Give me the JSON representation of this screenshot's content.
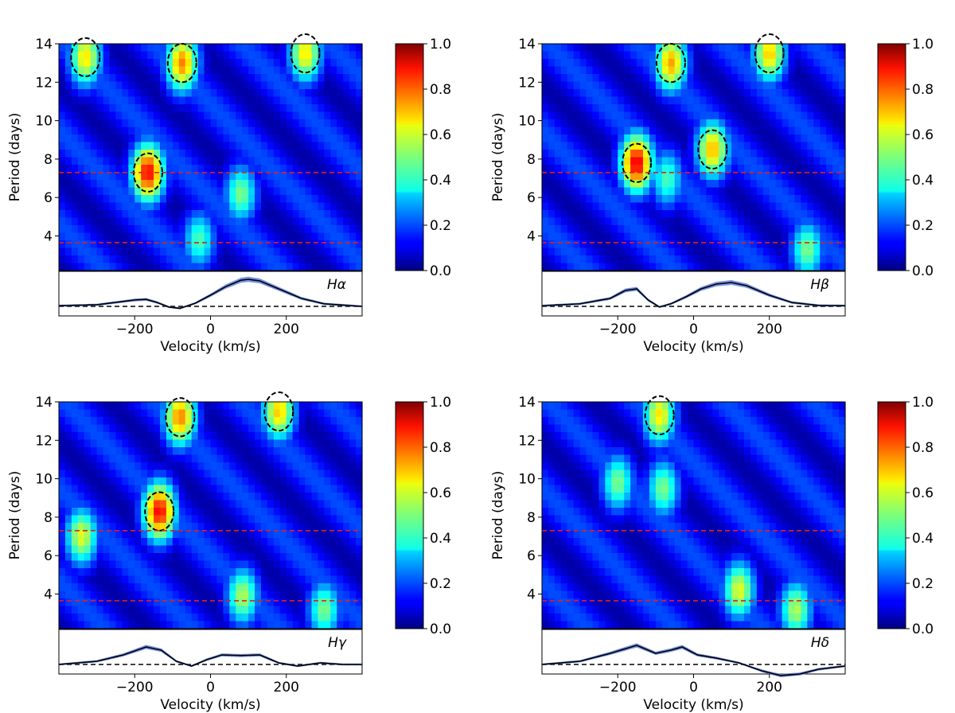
{
  "chart_data": [
    {
      "type": "heatmap",
      "line_label": "Hα",
      "ylabel": "Period (days)",
      "xlabel": "Velocity (km/s)",
      "xlim": [
        -400,
        400
      ],
      "ylim": [
        2.2,
        14
      ],
      "x_ticks": [
        -200,
        0,
        200
      ],
      "y_ticks": [
        4,
        6,
        8,
        10,
        12,
        14
      ],
      "reference_periods": [
        7.3,
        3.65
      ],
      "colorbar": {
        "min": 0.0,
        "max": 1.0,
        "ticks": [
          "0.0",
          "0.2",
          "0.4",
          "0.6",
          "0.8",
          "1.0"
        ],
        "colormap": "jet"
      },
      "power_peaks": [
        {
          "velocity": -165,
          "period": 7.3,
          "power": 0.88
        },
        {
          "velocity": -75,
          "period": 13.0,
          "power": 0.75
        },
        {
          "velocity": -330,
          "period": 13.3,
          "power": 0.65
        },
        {
          "velocity": 250,
          "period": 13.5,
          "power": 0.65
        },
        {
          "velocity": 80,
          "period": 6.2,
          "power": 0.5
        },
        {
          "velocity": -30,
          "period": 3.8,
          "power": 0.45
        }
      ],
      "mean_profile": {
        "velocity": [
          -400,
          -300,
          -200,
          -170,
          -140,
          -110,
          -80,
          -40,
          0,
          40,
          80,
          100,
          130,
          180,
          240,
          300,
          400
        ],
        "flux": [
          0.02,
          0.05,
          0.2,
          0.22,
          0.12,
          -0.02,
          -0.06,
          0.1,
          0.35,
          0.62,
          0.82,
          0.85,
          0.8,
          0.55,
          0.25,
          0.08,
          0.0
        ]
      }
    },
    {
      "type": "heatmap",
      "line_label": "Hβ",
      "ylabel": "Period (days)",
      "xlabel": "Velocity (km/s)",
      "xlim": [
        -400,
        400
      ],
      "ylim": [
        2.2,
        14
      ],
      "x_ticks": [
        -200,
        0,
        200
      ],
      "y_ticks": [
        4,
        6,
        8,
        10,
        12,
        14
      ],
      "reference_periods": [
        7.3,
        3.65
      ],
      "colorbar": {
        "min": 0.0,
        "max": 1.0,
        "ticks": [
          "0.0",
          "0.2",
          "0.4",
          "0.6",
          "0.8",
          "1.0"
        ],
        "colormap": "jet"
      },
      "power_peaks": [
        {
          "velocity": -150,
          "period": 7.8,
          "power": 0.9
        },
        {
          "velocity": 50,
          "period": 8.5,
          "power": 0.7
        },
        {
          "velocity": -60,
          "period": 13.0,
          "power": 0.72
        },
        {
          "velocity": 200,
          "period": 13.5,
          "power": 0.68
        },
        {
          "velocity": -70,
          "period": 7.0,
          "power": 0.45
        },
        {
          "velocity": 300,
          "period": 3.3,
          "power": 0.5
        }
      ],
      "mean_profile": {
        "velocity": [
          -400,
          -300,
          -220,
          -180,
          -150,
          -120,
          -90,
          -60,
          -20,
          20,
          60,
          100,
          140,
          200,
          260,
          330,
          400
        ],
        "flux": [
          0.02,
          0.08,
          0.25,
          0.5,
          0.55,
          0.2,
          -0.02,
          0.08,
          0.3,
          0.55,
          0.7,
          0.75,
          0.65,
          0.35,
          0.12,
          0.03,
          0.02
        ]
      }
    },
    {
      "type": "heatmap",
      "line_label": "Hγ",
      "ylabel": "Period (days)",
      "xlabel": "Velocity (km/s)",
      "xlim": [
        -400,
        400
      ],
      "ylim": [
        2.2,
        14
      ],
      "x_ticks": [
        -200,
        0,
        200
      ],
      "y_ticks": [
        4,
        6,
        8,
        10,
        12,
        14
      ],
      "reference_periods": [
        7.3,
        3.65
      ],
      "colorbar": {
        "min": 0.0,
        "max": 1.0,
        "ticks": [
          "0.0",
          "0.2",
          "0.4",
          "0.6",
          "0.8",
          "1.0"
        ],
        "colormap": "jet"
      },
      "power_peaks": [
        {
          "velocity": -135,
          "period": 8.3,
          "power": 0.88
        },
        {
          "velocity": -80,
          "period": 13.2,
          "power": 0.75
        },
        {
          "velocity": 180,
          "period": 13.5,
          "power": 0.68
        },
        {
          "velocity": -340,
          "period": 7.0,
          "power": 0.6
        },
        {
          "velocity": 85,
          "period": 3.9,
          "power": 0.55
        },
        {
          "velocity": 300,
          "period": 3.2,
          "power": 0.5
        }
      ],
      "mean_profile": {
        "velocity": [
          -400,
          -300,
          -230,
          -170,
          -130,
          -90,
          -50,
          -10,
          30,
          80,
          130,
          180,
          230,
          290,
          350,
          400
        ],
        "flux": [
          0.0,
          0.1,
          0.3,
          0.55,
          0.45,
          0.1,
          -0.05,
          0.15,
          0.3,
          0.28,
          0.3,
          0.05,
          -0.05,
          0.05,
          0.0,
          0.0
        ]
      }
    },
    {
      "type": "heatmap",
      "line_label": "Hδ",
      "ylabel": "Period (days)",
      "xlabel": "Velocity (km/s)",
      "xlim": [
        -400,
        400
      ],
      "ylim": [
        2.2,
        14
      ],
      "x_ticks": [
        -200,
        0,
        200
      ],
      "y_ticks": [
        4,
        6,
        8,
        10,
        12,
        14
      ],
      "reference_periods": [
        7.3,
        3.65
      ],
      "colorbar": {
        "min": 0.0,
        "max": 1.0,
        "ticks": [
          "0.0",
          "0.2",
          "0.4",
          "0.6",
          "0.8",
          "1.0"
        ],
        "colormap": "jet"
      },
      "power_peaks": [
        {
          "velocity": -90,
          "period": 13.3,
          "power": 0.65
        },
        {
          "velocity": -200,
          "period": 9.8,
          "power": 0.5
        },
        {
          "velocity": 120,
          "period": 4.2,
          "power": 0.6
        },
        {
          "velocity": 270,
          "period": 3.2,
          "power": 0.55
        },
        {
          "velocity": -80,
          "period": 9.5,
          "power": 0.5
        }
      ],
      "mean_profile": {
        "velocity": [
          -400,
          -300,
          -220,
          -150,
          -100,
          -60,
          -30,
          10,
          60,
          120,
          180,
          230,
          280,
          330,
          400
        ],
        "flux": [
          0.0,
          0.1,
          0.35,
          0.6,
          0.35,
          0.45,
          0.55,
          0.3,
          0.2,
          0.05,
          -0.2,
          -0.35,
          -0.3,
          -0.15,
          -0.05
        ]
      }
    }
  ]
}
